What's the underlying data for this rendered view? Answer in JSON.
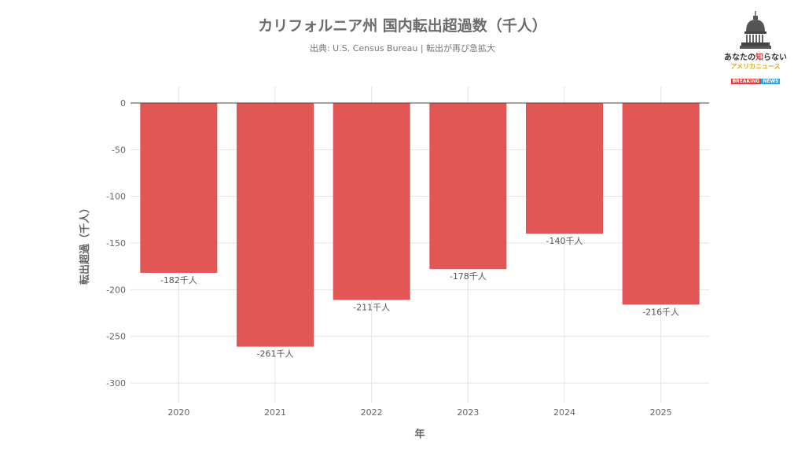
{
  "title": "カリフォルニア州 国内転出超過数（千人）",
  "subtitle": "出典: U.S. Census Bureau | 転出が再び急拡大",
  "logo": {
    "line1_a": "あなたの",
    "line1_b": "知",
    "line1_c": "らない",
    "line2": "アメリカニュース",
    "badge_a": "BREAKING",
    "badge_b": "NEWS"
  },
  "colors": {
    "bar": "#e35656",
    "grid": "#e3e3e3",
    "axis_text": "#666666"
  },
  "chart_data": {
    "type": "bar",
    "title": "カリフォルニア州 国内転出超過数（千人）",
    "xlabel": "年",
    "ylabel": "転出超過（千人）",
    "categories": [
      "2020",
      "2021",
      "2022",
      "2023",
      "2024",
      "2025"
    ],
    "values": [
      -182,
      -261,
      -211,
      -178,
      -140,
      -216
    ],
    "data_labels": [
      "-182千人",
      "-261千人",
      "-211千人",
      "-178千人",
      "-140千人",
      "-216千人"
    ],
    "ylim": [
      -300,
      0
    ],
    "yticks": [
      0,
      -50,
      -100,
      -150,
      -200,
      -250,
      -300
    ],
    "grid": true
  }
}
